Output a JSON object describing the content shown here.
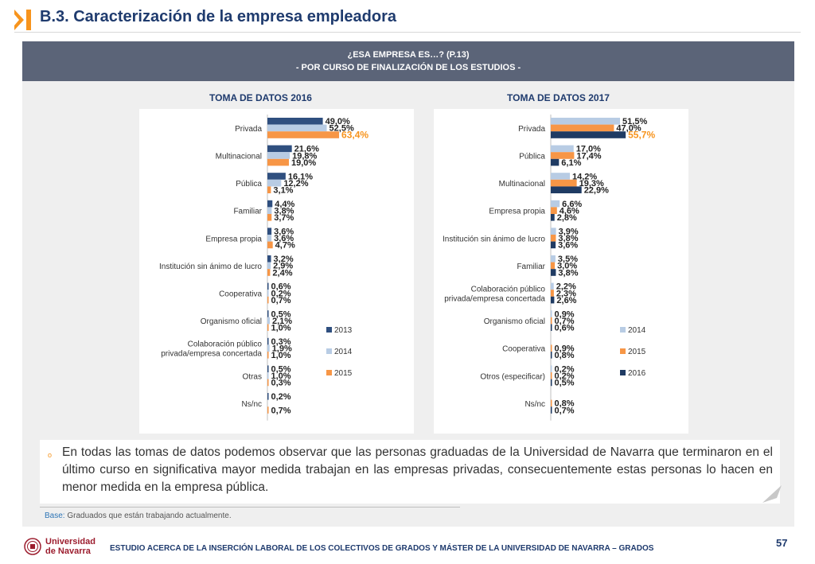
{
  "slide_title": "B.3. Caracterización de la empresa empleadora",
  "header": {
    "line1": "¿ESA EMPRESA ES…? (P.13)",
    "line2": "- POR CURSO DE FINALIZACIÓN DE LOS ESTUDIOS -"
  },
  "colors": {
    "2013": "#2f4f7f",
    "2014": "#b8cce4",
    "2015": "#f79646",
    "2016": "#1f3b63",
    "title": "#1f3b6e",
    "accent": "#f7941d"
  },
  "chart_data": [
    {
      "type": "bar",
      "orientation": "horizontal",
      "title": "TOMA DE DATOS 2016",
      "categories": [
        "Privada",
        "Multinacional",
        "Pública",
        "Familiar",
        "Empresa propia",
        "Institución sin ánimo de lucro",
        "Cooperativa",
        "Organismo oficial",
        "Colaboración público privada/empresa concertada",
        "Otras",
        "Ns/nc"
      ],
      "series": [
        {
          "name": "2013",
          "values": [
            49.0,
            21.6,
            16.1,
            4.4,
            3.6,
            3.2,
            0.6,
            0.5,
            0.3,
            0.5,
            0.2
          ],
          "labels": [
            "49,0%",
            "21,6%",
            "16,1%",
            "4,4%",
            "3,6%",
            "3,2%",
            "0,6%",
            "0,5%",
            "0,3%",
            "0,5%",
            "0,2%"
          ]
        },
        {
          "name": "2014",
          "values": [
            52.5,
            19.8,
            12.2,
            3.8,
            3.6,
            2.9,
            0.2,
            2.1,
            1.9,
            1.0,
            null
          ],
          "labels": [
            "52,5%",
            "19,8%",
            "12,2%",
            "3,8%",
            "3,6%",
            "2,9%",
            "0,2%",
            "2,1%",
            "1,9%",
            "1,0%",
            ""
          ]
        },
        {
          "name": "2015",
          "values": [
            63.4,
            19.0,
            3.1,
            3.7,
            4.7,
            2.4,
            0.7,
            1.0,
            1.0,
            0.3,
            0.7
          ],
          "labels": [
            "63,4%",
            "19,0%",
            "3,1%",
            "3,7%",
            "4,7%",
            "2,4%",
            "0,7%",
            "1,0%",
            "1,0%",
            "0,3%",
            "0,7%"
          ]
        }
      ],
      "legend": [
        "2013",
        "2014",
        "2015"
      ]
    },
    {
      "type": "bar",
      "orientation": "horizontal",
      "title": "TOMA DE DATOS 2017",
      "categories": [
        "Privada",
        "Pública",
        "Multinacional",
        "Empresa propia",
        "Institución sin ánimo de lucro",
        "Familiar",
        "Colaboración público privada/empresa concertada",
        "Organismo oficial",
        "Cooperativa",
        "Otros (especificar)",
        "Ns/nc"
      ],
      "series": [
        {
          "name": "2014",
          "values": [
            51.5,
            17.0,
            14.2,
            6.6,
            3.9,
            3.5,
            2.2,
            0.9,
            null,
            0.2,
            null
          ],
          "labels": [
            "51,5%",
            "17,0%",
            "14,2%",
            "6,6%",
            "3,9%",
            "3,5%",
            "2,2%",
            "0,9%",
            "",
            "0,2%",
            ""
          ]
        },
        {
          "name": "2015",
          "values": [
            47.0,
            17.4,
            19.3,
            4.6,
            3.8,
            3.0,
            2.3,
            0.7,
            0.9,
            0.2,
            0.8
          ],
          "labels": [
            "47,0%",
            "17,4%",
            "19,3%",
            "4,6%",
            "3,8%",
            "3,0%",
            "2,3%",
            "0,7%",
            "0,9%",
            "0,2%",
            "0,8%"
          ]
        },
        {
          "name": "2016",
          "values": [
            55.7,
            6.1,
            22.9,
            2.8,
            3.6,
            3.8,
            2.6,
            0.6,
            0.8,
            0.5,
            0.7
          ],
          "labels": [
            "55,7%",
            "6,1%",
            "22,9%",
            "2,8%",
            "3,6%",
            "3,8%",
            "2,6%",
            "0,6%",
            "0,8%",
            "0,5%",
            "0,7%"
          ]
        }
      ],
      "legend": [
        "2014",
        "2015",
        "2016"
      ]
    }
  ],
  "note": "En todas las tomas de datos podemos observar que las personas graduadas de la Universidad de Navarra que terminaron en el último curso en significativa mayor medida trabajan en las empresas privadas, consecuentemente estas personas lo hacen en menor medida en la empresa pública.",
  "note_bullet": "o",
  "base": {
    "label": "Base:",
    "text": " Graduados que están trabajando actualmente."
  },
  "logo": {
    "line1": "Universidad",
    "line2": "de Navarra"
  },
  "footer": "ESTUDIO ACERCA DE LA INSERCIÓN LABORAL DE LOS COLECTIVOS DE GRADOS Y MÁSTER DE LA UNIVERSIDAD DE NAVARRA – GRADOS",
  "page_number": "57"
}
